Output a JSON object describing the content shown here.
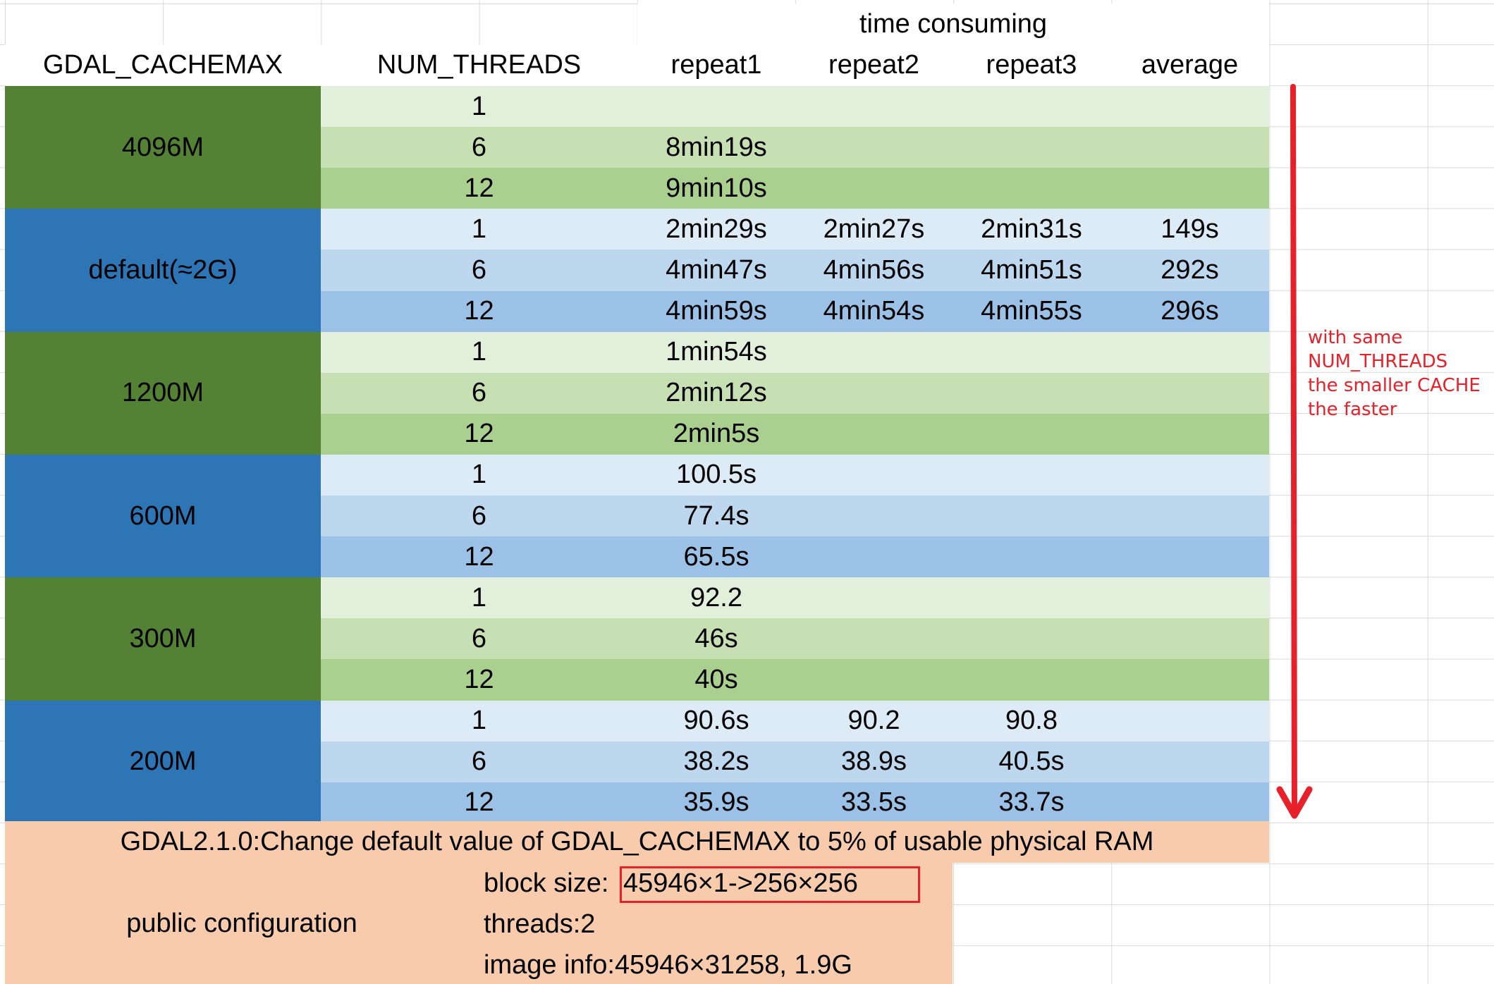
{
  "header": {
    "group_label": "time consuming",
    "columns": [
      "GDAL_CACHEMAX",
      "NUM_THREADS",
      "repeat1",
      "repeat2",
      "repeat3",
      "average"
    ]
  },
  "groups": [
    {
      "cachemax": "4096M",
      "color": "#548235",
      "rows": [
        {
          "threads": "1",
          "repeat1": "",
          "repeat2": "",
          "repeat3": "",
          "average": ""
        },
        {
          "threads": "6",
          "repeat1": "8min19s",
          "repeat2": "",
          "repeat3": "",
          "average": ""
        },
        {
          "threads": "12",
          "repeat1": "9min10s",
          "repeat2": "",
          "repeat3": "",
          "average": ""
        }
      ]
    },
    {
      "cachemax": "default(≈2G)",
      "color": "#2e75b6",
      "rows": [
        {
          "threads": "1",
          "repeat1": "2min29s",
          "repeat2": "2min27s",
          "repeat3": "2min31s",
          "average": "149s"
        },
        {
          "threads": "6",
          "repeat1": "4min47s",
          "repeat2": "4min56s",
          "repeat3": "4min51s",
          "average": "292s"
        },
        {
          "threads": "12",
          "repeat1": "4min59s",
          "repeat2": "4min54s",
          "repeat3": "4min55s",
          "average": "296s"
        }
      ]
    },
    {
      "cachemax": "1200M",
      "color": "#548235",
      "rows": [
        {
          "threads": "1",
          "repeat1": "1min54s",
          "repeat2": "",
          "repeat3": "",
          "average": ""
        },
        {
          "threads": "6",
          "repeat1": "2min12s",
          "repeat2": "",
          "repeat3": "",
          "average": ""
        },
        {
          "threads": "12",
          "repeat1": "2min5s",
          "repeat2": "",
          "repeat3": "",
          "average": ""
        }
      ]
    },
    {
      "cachemax": "600M",
      "color": "#2e75b6",
      "rows": [
        {
          "threads": "1",
          "repeat1": "100.5s",
          "repeat2": "",
          "repeat3": "",
          "average": ""
        },
        {
          "threads": "6",
          "repeat1": "77.4s",
          "repeat2": "",
          "repeat3": "",
          "average": ""
        },
        {
          "threads": "12",
          "repeat1": "65.5s",
          "repeat2": "",
          "repeat3": "",
          "average": ""
        }
      ]
    },
    {
      "cachemax": "300M",
      "color": "#548235",
      "rows": [
        {
          "threads": "1",
          "repeat1": "92.2",
          "repeat2": "",
          "repeat3": "",
          "average": ""
        },
        {
          "threads": "6",
          "repeat1": "46s",
          "repeat2": "",
          "repeat3": "",
          "average": ""
        },
        {
          "threads": "12",
          "repeat1": "40s",
          "repeat2": "",
          "repeat3": "",
          "average": ""
        }
      ]
    },
    {
      "cachemax": "200M",
      "color": "#2e75b6",
      "rows": [
        {
          "threads": "1",
          "repeat1": "90.6s",
          "repeat2": "90.2",
          "repeat3": "90.8",
          "average": ""
        },
        {
          "threads": "6",
          "repeat1": "38.2s",
          "repeat2": "38.9s",
          "repeat3": "40.5s",
          "average": ""
        },
        {
          "threads": "12",
          "repeat1": "35.9s",
          "repeat2": "33.5s",
          "repeat3": "33.7s",
          "average": ""
        }
      ]
    }
  ],
  "footer": {
    "note": "GDAL2.1.0:Change default value of GDAL_CACHEMAX to 5% of usable physical RAM",
    "config_label": "public configuration",
    "block_size_label": "block size:",
    "block_size_value": "45946×1->256×256",
    "threads": "threads:2",
    "image_info": "image info:45946×31258, 1.9G"
  },
  "annotation": {
    "lines": [
      "with same",
      "NUM_THREADS",
      "the smaller CACHE",
      "the faster"
    ],
    "color": "#e8202a"
  },
  "colors": {
    "green_dark": "#548235",
    "blue_dark": "#2e75b6",
    "green_shades": [
      "#e2efda",
      "#c6e0b4",
      "#a9d08e"
    ],
    "blue_shades": [
      "#ddebf7",
      "#bdd7ee",
      "#9bc2e6"
    ],
    "peach": "#f8cbad"
  }
}
